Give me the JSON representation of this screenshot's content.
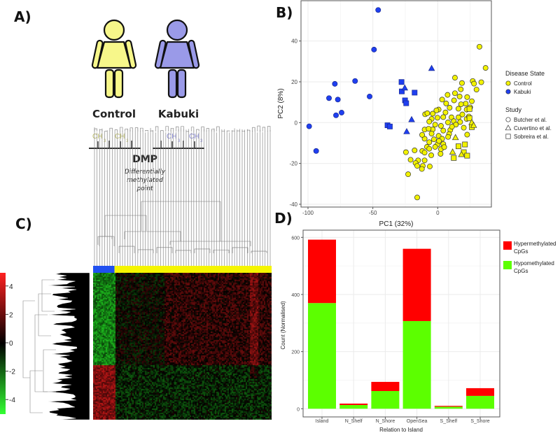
{
  "panels": {
    "a": "A)",
    "b": "B)",
    "c": "C)",
    "d": "D)"
  },
  "illustration": {
    "control_label": "Control",
    "kabuki_label": "Kabuki",
    "methyl_label": "CH",
    "methyl_sub": "3",
    "dmp_title": "DMP",
    "dmp_subtitle": "Differentially methylated point",
    "control_color": "#f7f78a",
    "kabuki_color": "#9a9ae8",
    "control_methyl_color": "#bcbc6a",
    "kabuki_methyl_color": "#8a8ad8"
  },
  "chart_data": [
    {
      "id": "pca",
      "type": "scatter",
      "xlabel": "PC1 (32%)",
      "ylabel": "PC2 (8%)",
      "xlim": [
        -103,
        41
      ],
      "ylim": [
        -41,
        60
      ],
      "xticks": [
        -100,
        -50,
        0
      ],
      "yticks": [
        -40,
        -20,
        0,
        20,
        40
      ],
      "grid": true,
      "legend": {
        "placement": "right",
        "disease_title": "Disease State",
        "disease_items": [
          {
            "label": "Control",
            "color": "#f2f200"
          },
          {
            "label": "Kabuki",
            "color": "#1f3ff0"
          }
        ],
        "study_title": "Study",
        "study_items": [
          {
            "label": "Butcher et al.",
            "shape": "circle"
          },
          {
            "label": "Cuvertino et al.",
            "shape": "triangle"
          },
          {
            "label": "Sobreira et al.",
            "shape": "square"
          }
        ]
      },
      "series": [
        {
          "group": "Kabuki",
          "shape": "circle",
          "points": [
            [
              -45.9,
              55.2
            ],
            [
              -49.1,
              35.8
            ],
            [
              -63.7,
              20.4
            ],
            [
              -52.5,
              12.8
            ],
            [
              -79.3,
              19
            ],
            [
              -83.8,
              12
            ],
            [
              -77,
              11.3
            ],
            [
              -74.1,
              4.9
            ],
            [
              -78.4,
              3.6
            ],
            [
              -99.1,
              -1.8
            ],
            [
              -93.7,
              -13.9
            ]
          ]
        },
        {
          "group": "Kabuki",
          "shape": "square",
          "points": [
            [
              -27.9,
              19.9
            ],
            [
              -27.7,
              15.3
            ],
            [
              -17.8,
              14.7
            ],
            [
              -25.2,
              10.9
            ],
            [
              -24.3,
              9.5
            ],
            [
              -38.7,
              -1.3
            ],
            [
              -36.9,
              -1.9
            ]
          ]
        },
        {
          "group": "Kabuki",
          "shape": "triangle",
          "points": [
            [
              -4.7,
              26.6
            ],
            [
              -25.4,
              17
            ],
            [
              -20.1,
              1.5
            ],
            [
              -23.9,
              -4.4
            ]
          ]
        },
        {
          "group": "Control",
          "shape": "circle",
          "points": [
            [
              32.2,
              37.2
            ],
            [
              36.9,
              26.8
            ],
            [
              33.6,
              19.8
            ],
            [
              27,
              20.4
            ],
            [
              28,
              19.1
            ],
            [
              13.3,
              22
            ],
            [
              18.7,
              19.4
            ],
            [
              29.9,
              16.2
            ],
            [
              17.8,
              16.3
            ],
            [
              13.3,
              14.4
            ],
            [
              7.6,
              13.6
            ],
            [
              22.7,
              12.5
            ],
            [
              26.3,
              10.5
            ],
            [
              16.9,
              12.8
            ],
            [
              3.4,
              11.3
            ],
            [
              6.5,
              9.4
            ],
            [
              12.6,
              10.9
            ],
            [
              21.6,
              9.3
            ],
            [
              25,
              7.5
            ],
            [
              0.7,
              6.4
            ],
            [
              9.2,
              7.3
            ],
            [
              16,
              6.8
            ],
            [
              22.3,
              6.4
            ],
            [
              -9.7,
              4.1
            ],
            [
              -3.8,
              4.4
            ],
            [
              4.3,
              2.7
            ],
            [
              10.6,
              2.6
            ],
            [
              16,
              2.6
            ],
            [
              22.3,
              1.8
            ],
            [
              -4.7,
              1.8
            ],
            [
              -0.2,
              2.4
            ],
            [
              -6.5,
              0.5
            ],
            [
              7.9,
              0.1
            ],
            [
              12.4,
              0.7
            ],
            [
              17.3,
              0.3
            ],
            [
              2.5,
              -1.6
            ],
            [
              -10.1,
              -3.4
            ],
            [
              -3.8,
              -3.3
            ],
            [
              4.3,
              -3.9
            ],
            [
              9.7,
              -3.6
            ],
            [
              20.1,
              -2.5
            ],
            [
              22.7,
              -5.9
            ],
            [
              -4.7,
              -5.4
            ],
            [
              0.7,
              -6.5
            ],
            [
              8.8,
              -5.6
            ],
            [
              -10.1,
              -7.9
            ],
            [
              -2.9,
              -8.2
            ],
            [
              3.4,
              -7.9
            ],
            [
              -6.5,
              -9.6
            ],
            [
              -0.2,
              -10.7
            ],
            [
              4.3,
              -10.5
            ],
            [
              -8.3,
              -11.9
            ],
            [
              -2,
              -11.9
            ],
            [
              -6.5,
              -12.8
            ],
            [
              2.5,
              -13
            ],
            [
              -11.9,
              -13.9
            ],
            [
              -17.8,
              -13.6
            ],
            [
              -24.5,
              -14.5
            ],
            [
              -10.1,
              -14.7
            ],
            [
              2.2,
              -15.3
            ],
            [
              -20.9,
              -18.2
            ],
            [
              -15.1,
              -18.5
            ],
            [
              -10.1,
              -18.5
            ],
            [
              -17.1,
              -19.8
            ],
            [
              -15.8,
              -21.2
            ],
            [
              -11.5,
              -21.2
            ],
            [
              -6.1,
              -21.5
            ],
            [
              -12.2,
              -22.7
            ],
            [
              -22.8,
              -25.3
            ],
            [
              -15.8,
              -36.7
            ],
            [
              -8,
              4.6
            ],
            [
              -2,
              -1
            ],
            [
              6,
              5
            ],
            [
              14,
              -1
            ],
            [
              19,
              4
            ],
            [
              -7,
              -3
            ],
            [
              1,
              -9
            ],
            [
              11,
              -2
            ],
            [
              -5,
              -16
            ],
            [
              -1,
              6
            ],
            [
              8,
              -7
            ],
            [
              18,
              9
            ],
            [
              24,
              3
            ],
            [
              -12,
              -6
            ],
            [
              5,
              -12
            ]
          ]
        },
        {
          "group": "Control",
          "shape": "square",
          "points": [
            [
              24.5,
              6.7
            ],
            [
              24.5,
              2.1
            ],
            [
              26.3,
              -2.2
            ],
            [
              16,
              -11.6
            ],
            [
              21,
              -10.7
            ],
            [
              12.4,
              -17.3
            ],
            [
              20.1,
              -14.5
            ],
            [
              22.7,
              -16.2
            ]
          ]
        },
        {
          "group": "Control",
          "shape": "triangle",
          "points": [
            [
              13.7,
              -7.3
            ],
            [
              11.5,
              -14.4
            ],
            [
              18.3,
              -15.6
            ],
            [
              26.3,
              0.1
            ],
            [
              27.7,
              -1.3
            ]
          ]
        }
      ]
    },
    {
      "id": "heatmap",
      "type": "heatmap",
      "colorbar_ticks": [
        4,
        2,
        0,
        -2,
        -4
      ],
      "colorbar_range": [
        -5,
        5
      ],
      "colors": {
        "low": "#33ff33",
        "mid": "#000000",
        "high": "#ff2020"
      },
      "column_groups": [
        {
          "group": "Kabuki",
          "color": "#2050f0",
          "fraction": 0.12
        },
        {
          "group": "Control",
          "color": "#f5f500",
          "fraction": 0.88
        }
      ]
    },
    {
      "id": "cpg_bar",
      "type": "bar",
      "stacked": true,
      "xlabel": "Relation to Island",
      "ylabel": "Count (Normalised)",
      "ylim": [
        0,
        620
      ],
      "yticks": [
        0,
        200,
        400,
        600
      ],
      "categories": [
        "Island",
        "N_Shelf",
        "N_Shore",
        "OpenSea",
        "S_Shelf",
        "S_Shore"
      ],
      "series": [
        {
          "name": "Hypomethylated CpGs",
          "legend_line1": "Hypomethylated",
          "legend_line2": "CpGs",
          "color": "#5cff00",
          "values": [
            370,
            13,
            62,
            307,
            7,
            45
          ]
        },
        {
          "name": "Hypermethylated CpGs",
          "legend_line1": "Hypermethylated",
          "legend_line2": "CpGs",
          "color": "#ff0000",
          "values": [
            222,
            5,
            32,
            253,
            3,
            27
          ]
        }
      ],
      "legend_placement": "top-right"
    }
  ]
}
